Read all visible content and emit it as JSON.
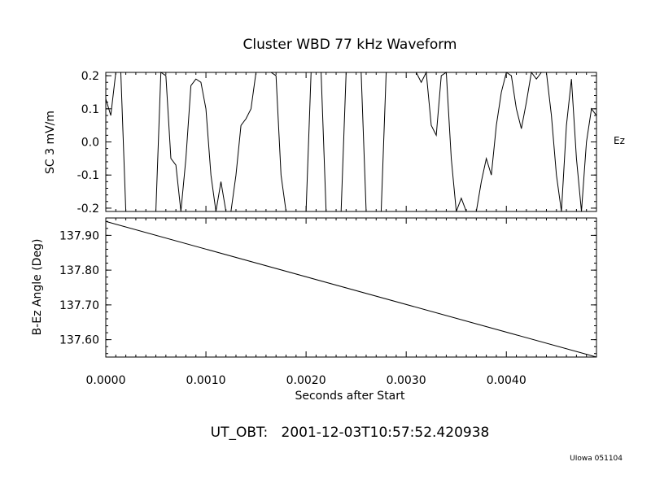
{
  "title": "Cluster WBD 77 kHz Waveform",
  "footer_time": "UT_OBT:   2001-12-03T10:57:52.420938",
  "footer_credit": "UIowa 051104",
  "chart_data": [
    {
      "type": "line",
      "ylabel": "SC 3 mV/m",
      "right_label": "Ez",
      "xlim": [
        0.0,
        0.0049
      ],
      "ylim": [
        -0.21,
        0.21
      ],
      "yticks": [
        -0.2,
        -0.1,
        0.0,
        0.1,
        0.2
      ],
      "ytick_labels": [
        "-0.2",
        "-0.1",
        "0.0",
        "0.1",
        "0.2"
      ],
      "grid": false,
      "series": [
        {
          "x": [
            0.0,
            5e-05,
            0.0001,
            0.00015,
            0.0002,
            0.00025,
            0.0003,
            0.00035,
            0.0004,
            0.00045,
            0.0005,
            0.00055,
            0.0006,
            0.00065,
            0.0007,
            0.00075,
            0.0008,
            0.00085,
            0.0009,
            0.00095,
            0.001,
            0.00105,
            0.0011,
            0.00115,
            0.0012,
            0.00125,
            0.0013,
            0.00135,
            0.0014,
            0.00145,
            0.0015,
            0.00155,
            0.0016,
            0.00165,
            0.0017,
            0.00175,
            0.0018,
            0.00185,
            0.0019,
            0.00195,
            0.002,
            0.00205,
            0.0021,
            0.00215,
            0.0022,
            0.00225,
            0.0023,
            0.00235,
            0.0024,
            0.00245,
            0.0025,
            0.00255,
            0.0026,
            0.00265,
            0.0027,
            0.00275,
            0.0028,
            0.00285,
            0.0029,
            0.00295,
            0.003,
            0.00305,
            0.0031,
            0.00315,
            0.0032,
            0.00325,
            0.0033,
            0.00335,
            0.0034,
            0.00345,
            0.0035,
            0.00355,
            0.0036,
            0.00365,
            0.0037,
            0.00375,
            0.0038,
            0.00385,
            0.0039,
            0.00395,
            0.004,
            0.00405,
            0.0041,
            0.00415,
            0.0042,
            0.00425,
            0.0043,
            0.00435,
            0.0044,
            0.00445,
            0.0045,
            0.00455,
            0.0046,
            0.00465,
            0.0047,
            0.00475,
            0.0048,
            0.00485,
            0.0049
          ],
          "y": [
            0.13,
            0.08,
            0.21,
            0.21,
            -0.21,
            -0.25,
            -0.25,
            -0.25,
            -0.21,
            -0.25,
            -0.25,
            0.21,
            0.2,
            -0.05,
            -0.07,
            -0.21,
            -0.05,
            0.17,
            0.19,
            0.18,
            0.1,
            -0.1,
            -0.21,
            -0.12,
            -0.21,
            -0.25,
            -0.1,
            0.05,
            0.07,
            0.1,
            0.21,
            0.25,
            0.25,
            0.21,
            0.2,
            -0.1,
            -0.21,
            -0.25,
            -0.25,
            -0.25,
            -0.25,
            0.21,
            0.25,
            0.25,
            -0.25,
            -0.25,
            -0.25,
            -0.25,
            0.21,
            0.25,
            0.25,
            0.25,
            -0.25,
            -0.25,
            -0.25,
            -0.25,
            0.21,
            0.25,
            0.25,
            0.25,
            0.25,
            0.25,
            0.21,
            0.18,
            0.21,
            0.05,
            0.02,
            0.2,
            0.21,
            -0.05,
            -0.21,
            -0.17,
            -0.21,
            -0.25,
            -0.21,
            -0.12,
            -0.05,
            -0.1,
            0.05,
            0.15,
            0.21,
            0.2,
            0.1,
            0.04,
            0.12,
            0.21,
            0.19,
            0.21,
            0.21,
            0.08,
            -0.1,
            -0.21,
            0.05,
            0.19,
            -0.05,
            -0.21,
            0.0,
            0.1,
            0.08
          ]
        }
      ]
    },
    {
      "type": "line",
      "ylabel": "B-Ez Angle (Deg)",
      "xlabel": "Seconds after Start",
      "xlim": [
        0.0,
        0.0049
      ],
      "ylim": [
        137.55,
        137.95
      ],
      "yticks": [
        137.6,
        137.7,
        137.8,
        137.9
      ],
      "ytick_labels": [
        "137.60",
        "137.70",
        "137.80",
        "137.90"
      ],
      "xticks": [
        0.0,
        0.001,
        0.002,
        0.003,
        0.004
      ],
      "xtick_labels": [
        "0.0000",
        "0.0010",
        "0.0020",
        "0.0030",
        "0.0040"
      ],
      "grid": false,
      "series": [
        {
          "x": [
            0.0,
            0.0049
          ],
          "y": [
            137.94,
            137.55
          ]
        }
      ]
    }
  ]
}
